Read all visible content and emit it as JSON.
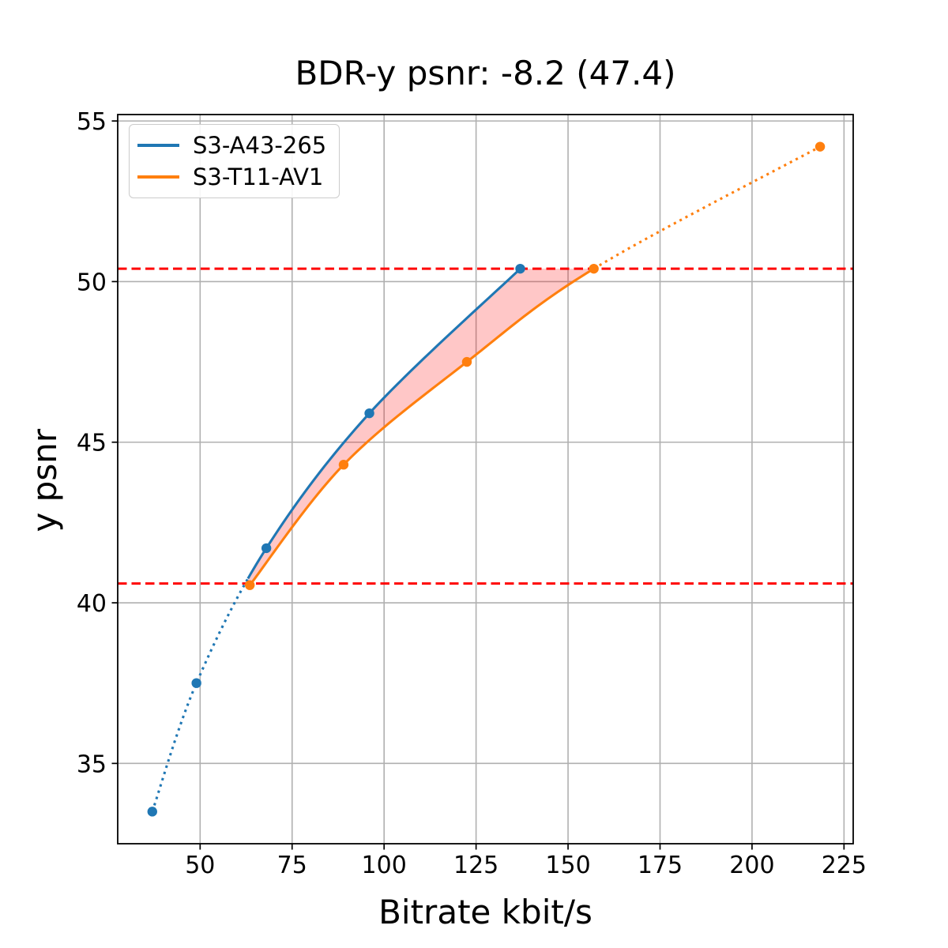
{
  "chart_data": {
    "type": "line",
    "title": "BDR-y psnr: -8.2 (47.4)",
    "xlabel": "Bitrate kbit/s",
    "ylabel": "y psnr",
    "xlim": [
      27.6,
      227.5
    ],
    "ylim": [
      32.5,
      55.2
    ],
    "x_ticks": [
      50,
      75,
      100,
      125,
      150,
      175,
      200,
      225
    ],
    "y_ticks": [
      35,
      40,
      45,
      50,
      55
    ],
    "grid": true,
    "legend_position": "upper left",
    "series": [
      {
        "name": "S3-A43-265",
        "color": "#1f77b4",
        "points": [
          [
            37,
            33.5
          ],
          [
            49,
            37.5
          ],
          [
            68,
            41.7
          ],
          [
            96,
            45.9
          ],
          [
            137,
            50.4
          ]
        ],
        "solid_x": [
          63,
          137
        ],
        "outside_style": "dotted"
      },
      {
        "name": "S3-T11-AV1",
        "color": "#ff7f0e",
        "points": [
          [
            63.5,
            40.55
          ],
          [
            89,
            44.3
          ],
          [
            122.5,
            47.5
          ],
          [
            157,
            50.4
          ],
          [
            218.5,
            54.2
          ]
        ],
        "solid_x": [
          63.5,
          157
        ],
        "outside_style": "dotted"
      }
    ],
    "ref_lines": {
      "y_values": [
        40.6,
        50.4
      ],
      "color": "#ff0000",
      "style": "dashed"
    },
    "fill_between": {
      "series": [
        "S3-A43-265",
        "S3-T11-AV1"
      ],
      "color": "#ff0000",
      "opacity": 0.22
    },
    "colors": {
      "grid": "#b0b0b0",
      "axis_frame": "#000000",
      "background": "#ffffff"
    }
  }
}
